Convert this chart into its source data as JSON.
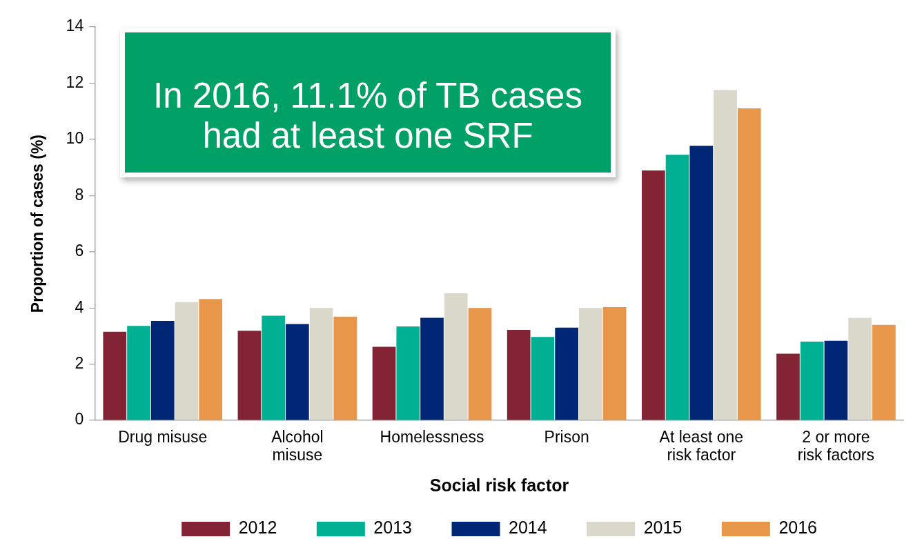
{
  "chart_data": {
    "type": "bar",
    "xlabel": "Social risk factor",
    "ylabel": "Proportion of cases (%)",
    "categories": [
      "Drug misuse",
      "Alcohol\nmisuse",
      "Homelessness",
      "Prison",
      "At least one\nrisk factor",
      "2 or more\nrisk factors"
    ],
    "series": [
      {
        "name": "2012",
        "color": "#822433",
        "values": [
          3.15,
          3.19,
          2.62,
          3.22,
          8.89,
          2.37
        ]
      },
      {
        "name": "2013",
        "color": "#00b092",
        "values": [
          3.36,
          3.72,
          3.34,
          2.97,
          9.45,
          2.8
        ]
      },
      {
        "name": "2014",
        "color": "#002776",
        "values": [
          3.54,
          3.43,
          3.65,
          3.3,
          9.77,
          2.83
        ]
      },
      {
        "name": "2015",
        "color": "#d9d8cb",
        "values": [
          4.21,
          4.0,
          4.53,
          4.0,
          11.75,
          3.65
        ]
      },
      {
        "name": "2016",
        "color": "#e8974a",
        "values": [
          4.32,
          3.69,
          4.0,
          4.03,
          11.1,
          3.4
        ]
      }
    ],
    "ylim": [
      0,
      14
    ],
    "yticks": [
      0,
      2,
      4,
      6,
      8,
      10,
      12,
      14
    ],
    "legend": "bottom",
    "annotations": [
      "In 2016, 11.1% of TB cases\nhad at least one SRF"
    ]
  }
}
